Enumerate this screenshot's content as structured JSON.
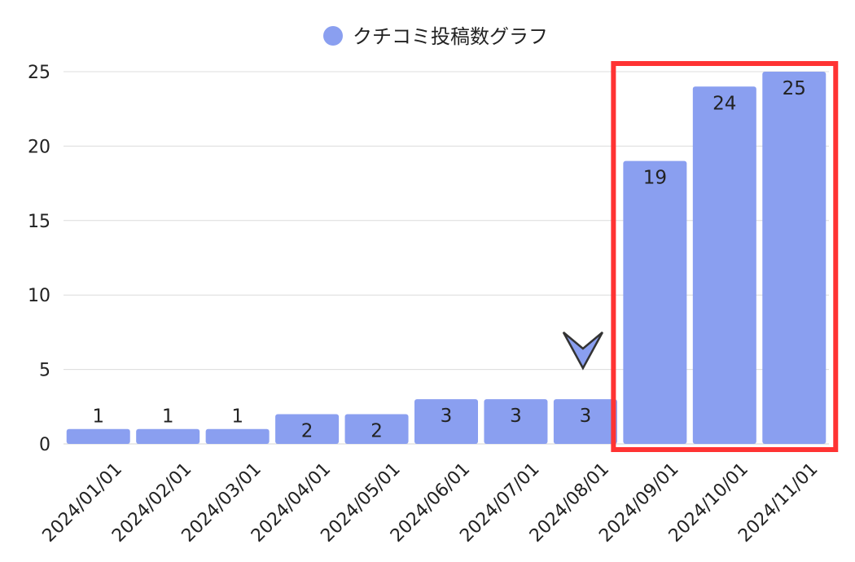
{
  "legend": {
    "label": "クチコミ投稿数グラフ",
    "color": "#8a9ff0"
  },
  "chart_data": {
    "type": "bar",
    "categories": [
      "2024/01/01",
      "2024/02/01",
      "2024/03/01",
      "2024/04/01",
      "2024/05/01",
      "2024/06/01",
      "2024/07/01",
      "2024/08/01",
      "2024/09/01",
      "2024/10/01",
      "2024/11/01"
    ],
    "series": [
      {
        "name": "クチコミ投稿数グラフ",
        "values": [
          1,
          1,
          1,
          2,
          2,
          3,
          3,
          3,
          19,
          24,
          25
        ],
        "color": "#8a9ff0"
      }
    ],
    "ylim": [
      0,
      25
    ],
    "yticks": [
      0,
      5,
      10,
      15,
      20,
      25
    ],
    "grid": true,
    "legend_position": "top-center",
    "data_labels": true
  },
  "annotations": {
    "highlight_box": {
      "categories": [
        "2024/09/01",
        "2024/10/01",
        "2024/11/01"
      ],
      "color": "#ff3333"
    },
    "pointer_arrow": {
      "category": "2024/08/01",
      "direction": "down"
    }
  }
}
